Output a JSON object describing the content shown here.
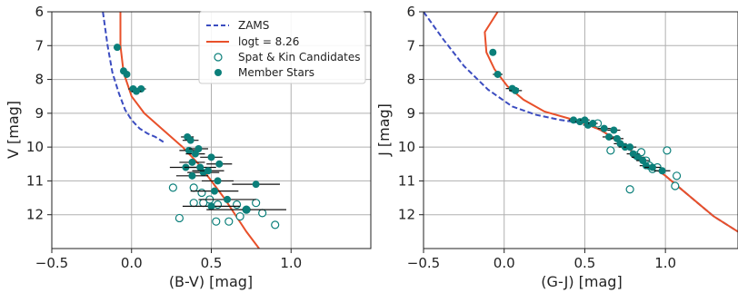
{
  "legend": {
    "entries": [
      {
        "label": "ZAMS",
        "kind": "dashed-line",
        "color": "#3b4cc0"
      },
      {
        "label": "logt = 8.26",
        "kind": "line",
        "color": "#e8502a"
      },
      {
        "label": "Spat & Kin Candidates",
        "kind": "open-marker",
        "color": "#0b7f7a"
      },
      {
        "label": "Member Stars",
        "kind": "filled-marker",
        "color": "#0b7f7a"
      }
    ],
    "placement": "top-right of left panel"
  },
  "chart_data": [
    {
      "type": "scatter",
      "xlabel": "(B-V) [mag]",
      "ylabel": "V [mag]",
      "xlim": [
        -0.5,
        1.5
      ],
      "ylim": [
        13,
        6
      ],
      "y_inverted": true,
      "grid": true,
      "xticks": [
        "−0.5",
        "0.0",
        "0.5",
        "1.0"
      ],
      "xtick_values": [
        -0.5,
        0.0,
        0.5,
        1.0
      ],
      "yticks": [
        "6",
        "7",
        "8",
        "9",
        "10",
        "11",
        "12"
      ],
      "ytick_values": [
        6,
        7,
        8,
        9,
        10,
        11,
        12
      ],
      "zams": [
        [
          -0.18,
          6.0
        ],
        [
          -0.15,
          7.0
        ],
        [
          -0.12,
          7.8
        ],
        [
          -0.08,
          8.4
        ],
        [
          -0.04,
          8.9
        ],
        [
          0.0,
          9.2
        ],
        [
          0.05,
          9.45
        ],
        [
          0.1,
          9.6
        ],
        [
          0.15,
          9.7
        ],
        [
          0.2,
          9.85
        ]
      ],
      "isochrone": [
        [
          -0.07,
          6.0
        ],
        [
          -0.07,
          7.0
        ],
        [
          -0.05,
          7.8
        ],
        [
          0.0,
          8.5
        ],
        [
          0.08,
          9.0
        ],
        [
          0.2,
          9.5
        ],
        [
          0.32,
          10.0
        ],
        [
          0.42,
          10.5
        ],
        [
          0.5,
          11.0
        ],
        [
          0.58,
          11.5
        ],
        [
          0.65,
          12.0
        ],
        [
          0.72,
          12.5
        ],
        [
          0.8,
          13.0
        ]
      ],
      "members": [
        {
          "x": -0.09,
          "y": 7.05,
          "xerr": 0.02
        },
        {
          "x": -0.05,
          "y": 7.75,
          "xerr": 0.02
        },
        {
          "x": -0.03,
          "y": 7.85,
          "xerr": 0.02
        },
        {
          "x": 0.01,
          "y": 8.28,
          "xerr": 0.03
        },
        {
          "x": 0.06,
          "y": 8.28,
          "xerr": 0.03
        },
        {
          "x": 0.03,
          "y": 8.35,
          "xerr": 0.03
        },
        {
          "x": 0.35,
          "y": 9.7,
          "xerr": 0.04
        },
        {
          "x": 0.37,
          "y": 9.8,
          "xerr": 0.05
        },
        {
          "x": 0.36,
          "y": 10.1,
          "xerr": 0.06
        },
        {
          "x": 0.4,
          "y": 10.2,
          "xerr": 0.06
        },
        {
          "x": 0.42,
          "y": 10.05,
          "xerr": 0.06
        },
        {
          "x": 0.5,
          "y": 10.3,
          "xerr": 0.07
        },
        {
          "x": 0.38,
          "y": 10.45,
          "xerr": 0.08
        },
        {
          "x": 0.55,
          "y": 10.5,
          "xerr": 0.08
        },
        {
          "x": 0.34,
          "y": 10.6,
          "xerr": 0.1
        },
        {
          "x": 0.43,
          "y": 10.6,
          "xerr": 0.1
        },
        {
          "x": 0.45,
          "y": 10.75,
          "xerr": 0.1
        },
        {
          "x": 0.48,
          "y": 10.7,
          "xerr": 0.1
        },
        {
          "x": 0.38,
          "y": 10.85,
          "xerr": 0.1
        },
        {
          "x": 0.54,
          "y": 11.0,
          "xerr": 0.1
        },
        {
          "x": 0.78,
          "y": 11.1,
          "xerr": 0.15
        },
        {
          "x": 0.52,
          "y": 11.3,
          "xerr": 0.15
        },
        {
          "x": 0.6,
          "y": 11.55,
          "xerr": 0.18
        },
        {
          "x": 0.5,
          "y": 11.75,
          "xerr": 0.18
        },
        {
          "x": 0.72,
          "y": 11.85,
          "xerr": 0.25
        }
      ],
      "candidates": [
        {
          "x": 0.26,
          "y": 11.2
        },
        {
          "x": 0.39,
          "y": 11.2
        },
        {
          "x": 0.44,
          "y": 11.35
        },
        {
          "x": 0.39,
          "y": 11.65
        },
        {
          "x": 0.45,
          "y": 11.65
        },
        {
          "x": 0.49,
          "y": 11.55
        },
        {
          "x": 0.54,
          "y": 11.7
        },
        {
          "x": 0.66,
          "y": 11.7
        },
        {
          "x": 0.78,
          "y": 11.65
        },
        {
          "x": 0.72,
          "y": 11.85
        },
        {
          "x": 0.82,
          "y": 11.95
        },
        {
          "x": 0.3,
          "y": 12.1
        },
        {
          "x": 0.53,
          "y": 12.2
        },
        {
          "x": 0.61,
          "y": 12.2
        },
        {
          "x": 0.68,
          "y": 12.05
        },
        {
          "x": 0.9,
          "y": 12.3
        }
      ]
    },
    {
      "type": "scatter",
      "xlabel": "(G-J) [mag]",
      "ylabel": "J [mag]",
      "xlim": [
        -0.5,
        1.45
      ],
      "ylim": [
        13,
        6
      ],
      "y_inverted": true,
      "grid": true,
      "xticks": [
        "−0.5",
        "0.0",
        "0.5",
        "1.0"
      ],
      "xtick_values": [
        -0.5,
        0.0,
        0.5,
        1.0
      ],
      "yticks": [
        "6",
        "7",
        "8",
        "9",
        "10",
        "11",
        "12"
      ],
      "ytick_values": [
        6,
        7,
        8,
        9,
        10,
        11,
        12
      ],
      "zams": [
        [
          -0.5,
          6.0
        ],
        [
          -0.38,
          6.8
        ],
        [
          -0.25,
          7.6
        ],
        [
          -0.1,
          8.3
        ],
        [
          0.05,
          8.8
        ],
        [
          0.2,
          9.05
        ],
        [
          0.35,
          9.2
        ],
        [
          0.5,
          9.3
        ],
        [
          0.6,
          9.5
        ],
        [
          0.7,
          9.8
        ],
        [
          0.8,
          10.15
        ],
        [
          0.9,
          10.5
        ],
        [
          1.0,
          10.85
        ],
        [
          1.1,
          11.25
        ],
        [
          1.2,
          11.65
        ],
        [
          1.3,
          12.05
        ],
        [
          1.45,
          12.5
        ]
      ],
      "isochrone": [
        [
          -0.04,
          6.0
        ],
        [
          -0.12,
          6.6
        ],
        [
          -0.11,
          7.2
        ],
        [
          -0.06,
          7.7
        ],
        [
          0.02,
          8.2
        ],
        [
          0.12,
          8.6
        ],
        [
          0.25,
          8.95
        ],
        [
          0.4,
          9.15
        ],
        [
          0.5,
          9.3
        ],
        [
          0.6,
          9.5
        ],
        [
          0.7,
          9.8
        ],
        [
          0.8,
          10.15
        ],
        [
          0.9,
          10.5
        ],
        [
          1.0,
          10.85
        ],
        [
          1.1,
          11.25
        ],
        [
          1.2,
          11.65
        ],
        [
          1.3,
          12.05
        ],
        [
          1.45,
          12.5
        ]
      ],
      "members": [
        {
          "x": -0.07,
          "y": 7.2,
          "xerr": 0.02
        },
        {
          "x": -0.04,
          "y": 7.85,
          "xerr": 0.03
        },
        {
          "x": 0.05,
          "y": 8.27,
          "xerr": 0.04
        },
        {
          "x": 0.07,
          "y": 8.33,
          "xerr": 0.04
        },
        {
          "x": 0.43,
          "y": 9.2,
          "xerr": 0.03
        },
        {
          "x": 0.47,
          "y": 9.25,
          "xerr": 0.03
        },
        {
          "x": 0.5,
          "y": 9.2,
          "xerr": 0.03
        },
        {
          "x": 0.52,
          "y": 9.35,
          "xerr": 0.03
        },
        {
          "x": 0.55,
          "y": 9.3,
          "xerr": 0.03
        },
        {
          "x": 0.62,
          "y": 9.45,
          "xerr": 0.04
        },
        {
          "x": 0.68,
          "y": 9.5,
          "xerr": 0.04
        },
        {
          "x": 0.65,
          "y": 9.7,
          "xerr": 0.04
        },
        {
          "x": 0.7,
          "y": 9.75,
          "xerr": 0.04
        },
        {
          "x": 0.72,
          "y": 9.9,
          "xerr": 0.04
        },
        {
          "x": 0.75,
          "y": 10.0,
          "xerr": 0.04
        },
        {
          "x": 0.78,
          "y": 10.0,
          "xerr": 0.04
        },
        {
          "x": 0.8,
          "y": 10.2,
          "xerr": 0.04
        },
        {
          "x": 0.83,
          "y": 10.3,
          "xerr": 0.04
        },
        {
          "x": 0.86,
          "y": 10.4,
          "xerr": 0.04
        },
        {
          "x": 0.88,
          "y": 10.55,
          "xerr": 0.04
        },
        {
          "x": 0.92,
          "y": 10.6,
          "xerr": 0.05
        },
        {
          "x": 0.98,
          "y": 10.7,
          "xerr": 0.05
        }
      ],
      "candidates": [
        {
          "x": 0.58,
          "y": 9.3
        },
        {
          "x": 0.66,
          "y": 10.1
        },
        {
          "x": 0.82,
          "y": 10.25
        },
        {
          "x": 0.85,
          "y": 10.15
        },
        {
          "x": 0.88,
          "y": 10.4
        },
        {
          "x": 0.9,
          "y": 10.55
        },
        {
          "x": 0.92,
          "y": 10.65
        },
        {
          "x": 0.95,
          "y": 10.6
        },
        {
          "x": 1.01,
          "y": 10.1
        },
        {
          "x": 1.07,
          "y": 10.85
        },
        {
          "x": 1.06,
          "y": 11.15
        },
        {
          "x": 0.78,
          "y": 11.25
        }
      ]
    }
  ]
}
